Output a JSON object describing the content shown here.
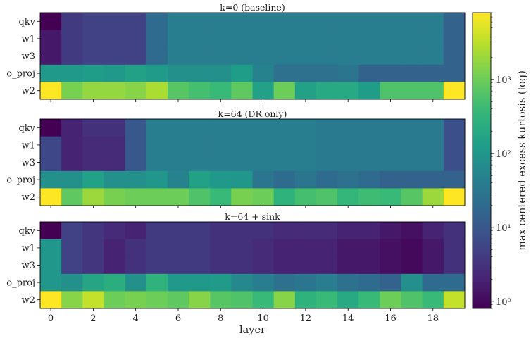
{
  "chart_data": {
    "type": "heatmap",
    "panels": [
      {
        "title": "k=0 (baseline)",
        "rows": [
          "qkv",
          "w1",
          "w3",
          "o_proj",
          "w2"
        ],
        "values": [
          [
            0.8,
            4,
            5,
            5,
            5,
            20,
            40,
            40,
            40,
            40,
            40,
            40,
            40,
            40,
            40,
            40,
            40,
            40,
            40,
            15
          ],
          [
            1.5,
            4,
            5,
            5,
            5,
            20,
            40,
            40,
            40,
            40,
            40,
            40,
            40,
            40,
            40,
            40,
            40,
            40,
            40,
            15
          ],
          [
            1.5,
            4,
            5,
            5,
            5,
            20,
            40,
            40,
            40,
            40,
            40,
            40,
            40,
            40,
            40,
            40,
            40,
            40,
            40,
            15
          ],
          [
            110,
            110,
            130,
            110,
            150,
            120,
            80,
            80,
            80,
            130,
            50,
            25,
            25,
            25,
            30,
            15,
            15,
            15,
            15,
            15
          ],
          [
            8000,
            1200,
            1800,
            1800,
            1500,
            2500,
            700,
            500,
            400,
            800,
            150,
            1000,
            150,
            200,
            200,
            130,
            600,
            600,
            600,
            8000
          ]
        ]
      },
      {
        "title": "k=64 (DR only)",
        "rows": [
          "qkv",
          "w1",
          "w3",
          "o_proj",
          "w2"
        ],
        "values": [
          [
            0.8,
            2,
            3,
            3,
            10,
            40,
            40,
            40,
            40,
            40,
            40,
            40,
            40,
            35,
            35,
            35,
            35,
            35,
            35,
            8
          ],
          [
            6,
            2,
            2.5,
            2.5,
            10,
            40,
            40,
            40,
            40,
            40,
            40,
            40,
            40,
            35,
            35,
            35,
            35,
            35,
            35,
            8
          ],
          [
            6,
            2,
            2.5,
            2.5,
            10,
            40,
            40,
            40,
            40,
            40,
            40,
            40,
            40,
            35,
            35,
            35,
            35,
            35,
            35,
            8
          ],
          [
            80,
            80,
            150,
            80,
            80,
            100,
            50,
            150,
            110,
            100,
            30,
            20,
            30,
            20,
            25,
            20,
            15,
            15,
            15,
            15
          ],
          [
            8000,
            800,
            2000,
            1200,
            1000,
            1000,
            1000,
            600,
            400,
            1200,
            1000,
            300,
            500,
            600,
            350,
            450,
            400,
            700,
            2000,
            8000
          ]
        ]
      },
      {
        "title": "k=64 + sink",
        "rows": [
          "qkv",
          "w1",
          "w3",
          "o_proj",
          "w2"
        ],
        "values": [
          [
            0.8,
            5,
            3.5,
            2.5,
            2,
            4,
            4,
            4,
            3,
            3,
            3,
            2.5,
            2.5,
            2.5,
            2,
            2,
            1.5,
            1.2,
            2,
            3
          ],
          [
            100,
            5,
            3.5,
            2,
            3,
            4,
            4,
            4,
            3,
            3,
            2.5,
            2,
            2,
            2,
            1.5,
            1.5,
            1.2,
            1,
            1.5,
            3
          ],
          [
            100,
            5,
            3.5,
            2,
            3,
            4,
            4,
            4,
            3,
            3,
            2.5,
            2,
            2,
            2,
            1.5,
            1.5,
            1.2,
            1,
            1.5,
            3
          ],
          [
            100,
            80,
            180,
            250,
            80,
            300,
            110,
            110,
            120,
            60,
            40,
            25,
            30,
            40,
            25,
            20,
            15,
            80,
            20,
            20
          ],
          [
            8000,
            1500,
            3500,
            1000,
            1200,
            1000,
            800,
            1500,
            700,
            600,
            400,
            1500,
            300,
            400,
            200,
            400,
            1000,
            600,
            400,
            3500
          ]
        ]
      }
    ],
    "x_ticks": [
      0,
      2,
      4,
      6,
      8,
      10,
      12,
      14,
      16,
      18
    ],
    "xlabel": "layer",
    "colorbar": {
      "label": "max centered excess kurtosis (log)",
      "scale": "log",
      "range": [
        0.8,
        8000
      ],
      "ticks": [
        {
          "value": 1,
          "label": "10⁰"
        },
        {
          "value": 10,
          "label": "10¹"
        },
        {
          "value": 100,
          "label": "10²"
        },
        {
          "value": 1000,
          "label": "10³"
        }
      ],
      "colormap": "viridis"
    }
  }
}
